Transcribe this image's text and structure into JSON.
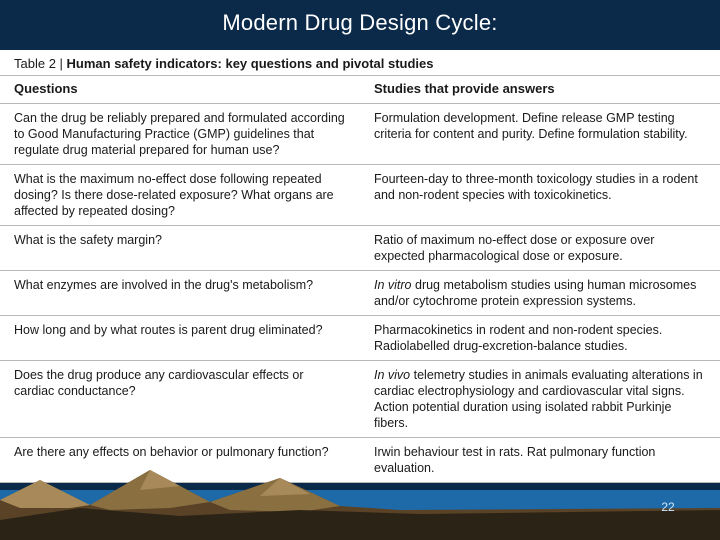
{
  "slide": {
    "title": "Modern Drug Design Cycle:",
    "title_color": "#ffffff",
    "title_bg": "#0b2a4a",
    "page_number": "22",
    "page_number_color": "#cfe6ff"
  },
  "table": {
    "caption_label": "Table 2 | ",
    "caption_text": "Human safety indicators: key questions and pivotal studies",
    "columns": [
      "Questions",
      "Studies that provide answers"
    ],
    "rows": [
      {
        "question": "Can the drug be reliably prepared and formulated according to Good Manufacturing Practice (GMP) guidelines that regulate drug material prepared for human use?",
        "answer_html": "Formulation development. Define release GMP testing criteria for content and purity. Define formulation stability."
      },
      {
        "question": "What is the maximum no-effect dose following repeated dosing? Is there dose-related exposure? What organs are affected by repeated dosing?",
        "answer_html": "Fourteen-day to three-month toxicology studies in a rodent and non-rodent species with toxicokinetics."
      },
      {
        "question": "What is the safety margin?",
        "answer_html": "Ratio of maximum no-effect dose or exposure over expected pharmacological dose or exposure."
      },
      {
        "question": "What enzymes are involved in the drug's metabolism?",
        "answer_html": "<span class=\"italic\">In vitro</span> drug metabolism studies using human microsomes and/or cytochrome protein expression systems."
      },
      {
        "question": "How long and by what routes is parent drug eliminated?",
        "answer_html": "Pharmacokinetics in rodent and non-rodent species. Radiolabelled drug-excretion-balance studies."
      },
      {
        "question": "Does the drug produce any cardiovascular effects or cardiac conductance?",
        "answer_html": "<span class=\"italic\">In vivo</span> telemetry studies in animals evaluating alterations in cardiac electrophysiology and cardiovascular vital signs. Action potential duration using isolated rabbit Purkinje fibers."
      },
      {
        "question": "Are there any effects on behavior or pulmonary function?",
        "answer_html": "Irwin behaviour test in rats. Rat pulmonary function evaluation."
      }
    ],
    "border_color": "#b8b8b8",
    "text_color": "#1a1a1a",
    "background_color": "#ffffff",
    "font_size": 12.5,
    "header_font_size": 13
  },
  "decoration": {
    "sky_color": "#0b2a4a",
    "water_color": "#1e6aa8",
    "mountain_light": "#a88a5a",
    "mountain_dark": "#5a4226",
    "mountain_mid": "#8a6f40",
    "foreground_dark": "#2b2416"
  }
}
